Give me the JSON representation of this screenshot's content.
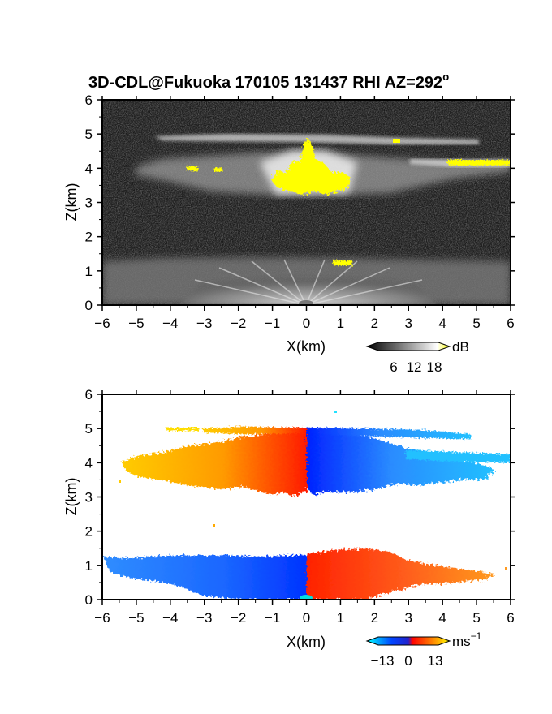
{
  "title": "3D-CDL@Fukuoka 170105 131437 RHI AZ=292",
  "title_degree": "o",
  "chart_data": [
    {
      "type": "heatmap",
      "quantity": "reflectivity",
      "xlabel": "X(km)",
      "ylabel": "Z(km)",
      "xlim": [
        -6,
        6
      ],
      "ylim": [
        0,
        6
      ],
      "xticks": [
        -6,
        -5,
        -4,
        -3,
        -2,
        -1,
        0,
        1,
        2,
        3,
        4,
        5,
        6
      ],
      "yticks": [
        0,
        1,
        2,
        3,
        4,
        5,
        6
      ],
      "colorbar": {
        "unit": "dB",
        "ticks": [
          "6",
          "12",
          "18"
        ],
        "range": [
          0,
          20
        ],
        "colors": [
          "#000000",
          "#ffffff",
          "#ffff00"
        ]
      },
      "features": [
        {
          "layer": "cloud layer with bright core",
          "x": [
            -5.5,
            6
          ],
          "z": [
            3.1,
            4.9
          ],
          "peak_db": 18
        },
        {
          "layer": "boundary layer echo",
          "x": [
            -6,
            6
          ],
          "z": [
            0,
            1.35
          ]
        }
      ]
    },
    {
      "type": "heatmap",
      "quantity": "doppler velocity",
      "xlabel": "X(km)",
      "ylabel": "Z(km)",
      "xlim": [
        -6,
        6
      ],
      "ylim": [
        0,
        6
      ],
      "xticks": [
        -6,
        -5,
        -4,
        -3,
        -2,
        -1,
        0,
        1,
        2,
        3,
        4,
        5,
        6
      ],
      "yticks": [
        0,
        1,
        2,
        3,
        4,
        5,
        6
      ],
      "colorbar": {
        "unit": "ms",
        "unit_exponent": "−1",
        "ticks": [
          "−13",
          "0",
          "13"
        ],
        "range": [
          -13,
          13
        ],
        "colors": [
          "#00ffff",
          "#0044ff",
          "#ff0000",
          "#ffff00"
        ]
      },
      "features": [
        {
          "layer": "upper layer, left side",
          "x": [
            -5.5,
            0
          ],
          "z": [
            3.1,
            5.0
          ],
          "velocity_ms": [
            5,
            12
          ]
        },
        {
          "layer": "upper layer, right side",
          "x": [
            0,
            6
          ],
          "z": [
            3.3,
            5.0
          ],
          "velocity_ms": [
            -12,
            -5
          ]
        },
        {
          "layer": "lower layer, left side",
          "x": [
            -6,
            0
          ],
          "z": [
            0,
            1.3
          ],
          "velocity_ms": [
            -10,
            -6
          ]
        },
        {
          "layer": "lower layer, right side",
          "x": [
            0,
            6
          ],
          "z": [
            0,
            1.45
          ],
          "velocity_ms": [
            6,
            12
          ]
        }
      ]
    }
  ]
}
